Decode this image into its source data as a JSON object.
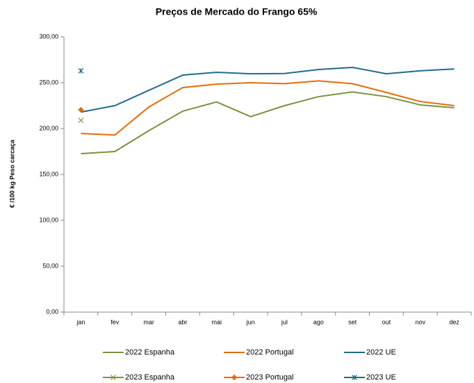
{
  "chart_data": {
    "type": "line",
    "title": "Preços de Mercado do Frango 65%",
    "y_label": "€ /100 kg Peso carcaça",
    "categories": [
      "jan",
      "fev",
      "mar",
      "abr",
      "mai",
      "jun",
      "jul",
      "ago",
      "set",
      "out",
      "nov",
      "dez"
    ],
    "ylim": [
      0,
      300
    ],
    "yticks": [
      {
        "value": 0,
        "label": "0,00"
      },
      {
        "value": 50,
        "label": "50,00"
      },
      {
        "value": 100,
        "label": "100,00"
      },
      {
        "value": 150,
        "label": "150,00"
      },
      {
        "value": 200,
        "label": "200,00"
      },
      {
        "value": 250,
        "label": "250,00"
      },
      {
        "value": 300,
        "label": "300,00"
      }
    ],
    "grid": false,
    "legend": "bottom",
    "series": [
      {
        "name": "2022 Espanha",
        "color": "#77933c",
        "values": [
          172.7,
          175,
          197.7,
          219,
          229,
          213,
          225,
          234.8,
          240,
          234.8,
          225.8,
          222.7
        ]
      },
      {
        "name": "2022 Portugal",
        "color": "#e46c0a",
        "values": [
          194.7,
          193,
          223.5,
          244.7,
          248.5,
          250,
          249,
          252,
          249,
          239.4,
          229.5,
          225
        ]
      },
      {
        "name": "2022 UE",
        "color": "#1f6b8c",
        "values": [
          218,
          225,
          241.7,
          258.3,
          261.4,
          259.8,
          260,
          264.4,
          266.7,
          259.8,
          263,
          265
        ]
      },
      {
        "name": "2023 Espanha",
        "color": "#77933c",
        "marker": "x",
        "values": [
          209,
          null,
          null,
          null,
          null,
          null,
          null,
          null,
          null,
          null,
          null,
          null
        ]
      },
      {
        "name": "2023 Portugal",
        "color": "#e46c0a",
        "marker": "diamond",
        "values": [
          220.5,
          null,
          null,
          null,
          null,
          null,
          null,
          null,
          null,
          null,
          null,
          null
        ]
      },
      {
        "name": "2023 UE",
        "color": "#1f6b8c",
        "marker": "star",
        "values": [
          263,
          null,
          null,
          null,
          null,
          null,
          null,
          null,
          null,
          null,
          null,
          null
        ]
      }
    ]
  }
}
